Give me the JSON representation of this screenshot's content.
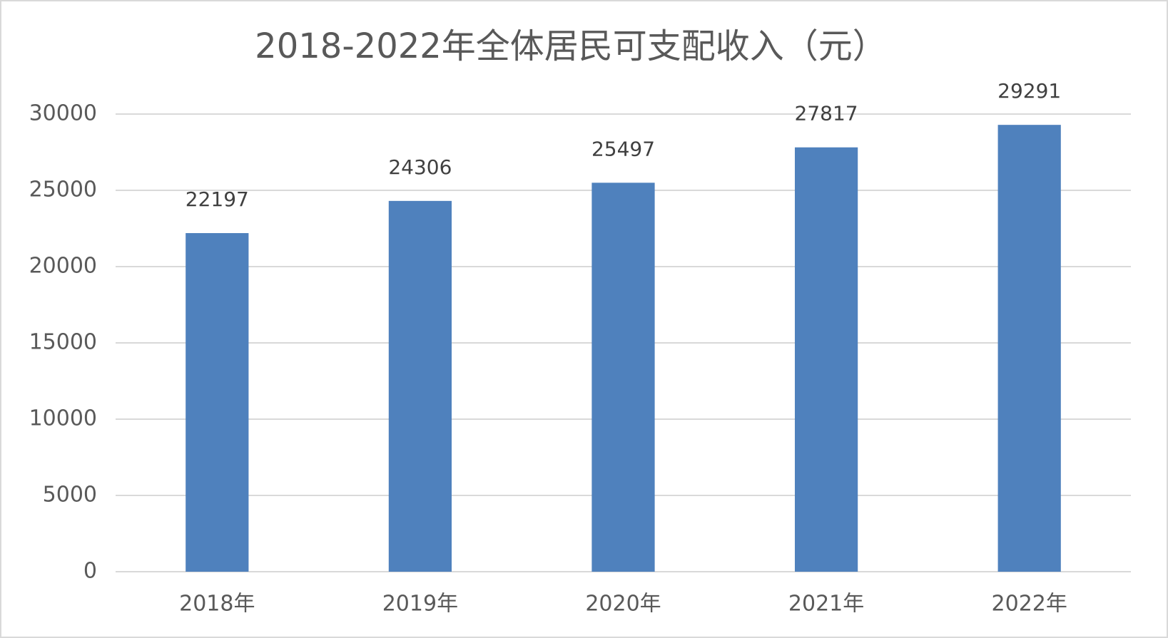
{
  "chart_data": {
    "type": "bar",
    "title": "2018-2022年全体居民可支配收入（元）",
    "categories": [
      "2018年",
      "2019年",
      "2020年",
      "2021年",
      "2022年"
    ],
    "values": [
      22197,
      24306,
      25497,
      27817,
      29291
    ],
    "color": "#4f81bd",
    "ylim": [
      0,
      30000
    ],
    "yticks": [
      0,
      5000,
      10000,
      15000,
      20000,
      25000,
      30000
    ],
    "grid": true
  }
}
